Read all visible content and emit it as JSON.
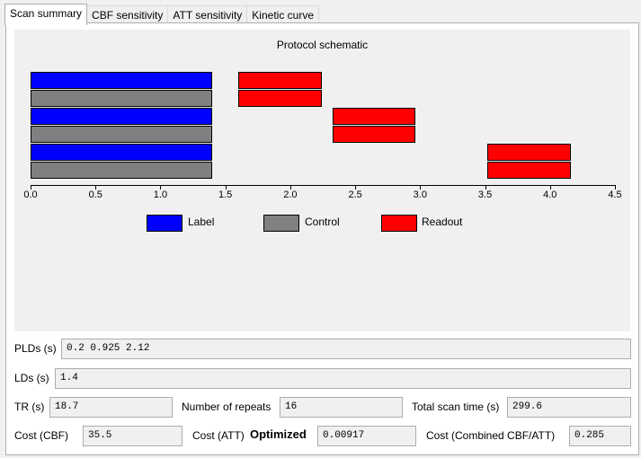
{
  "tabs": [
    {
      "label": "Scan summary",
      "active": true
    },
    {
      "label": "CBF sensitivity",
      "active": false
    },
    {
      "label": "ATT sensitivity",
      "active": false
    },
    {
      "label": "Kinetic curve",
      "active": false
    }
  ],
  "chart_data": {
    "type": "bar",
    "title": "Protocol schematic",
    "xlim": [
      0.0,
      4.5
    ],
    "xticks": [
      "0.0",
      "0.5",
      "1.0",
      "1.5",
      "2.0",
      "2.5",
      "3.0",
      "3.5",
      "4.0",
      "4.5"
    ],
    "rows": [
      {
        "type": "Label",
        "start": 0.0,
        "end": 1.4
      },
      {
        "type": "Control",
        "start": 0.0,
        "end": 1.4
      },
      {
        "type": "Label",
        "start": 0.0,
        "end": 1.4
      },
      {
        "type": "Control",
        "start": 0.0,
        "end": 1.4
      },
      {
        "type": "Label",
        "start": 0.0,
        "end": 1.4
      },
      {
        "type": "Control",
        "start": 0.0,
        "end": 1.4
      }
    ],
    "readouts": [
      {
        "rows": [
          0,
          1
        ],
        "start": 1.6,
        "end": 2.24
      },
      {
        "rows": [
          2,
          3
        ],
        "start": 2.325,
        "end": 2.965
      },
      {
        "rows": [
          4,
          5
        ],
        "start": 3.52,
        "end": 4.16
      }
    ],
    "legend": [
      {
        "label": "Label",
        "color": "#0000ff"
      },
      {
        "label": "Control",
        "color": "#808080"
      },
      {
        "label": "Readout",
        "color": "#ff0000"
      }
    ],
    "legend_position": "bottom"
  },
  "fields": {
    "plds": {
      "label": "PLDs (s)",
      "value": "0.2 0.925 2.12"
    },
    "lds": {
      "label": "LDs (s)",
      "value": "1.4"
    },
    "tr": {
      "label": "TR (s)",
      "value": "18.7"
    },
    "repeats": {
      "label": "Number of repeats",
      "value": "16"
    },
    "total_time": {
      "label": "Total scan time (s)",
      "value": "299.6"
    },
    "cost_cbf": {
      "label": "Cost (CBF)",
      "value": "35.5"
    },
    "cost_att": {
      "label": "Cost (ATT)",
      "value": "0.00917"
    },
    "optimized": "Optimized",
    "cost_combined": {
      "label": "Cost (Combined CBF/ATT)",
      "value": "0.285"
    }
  }
}
